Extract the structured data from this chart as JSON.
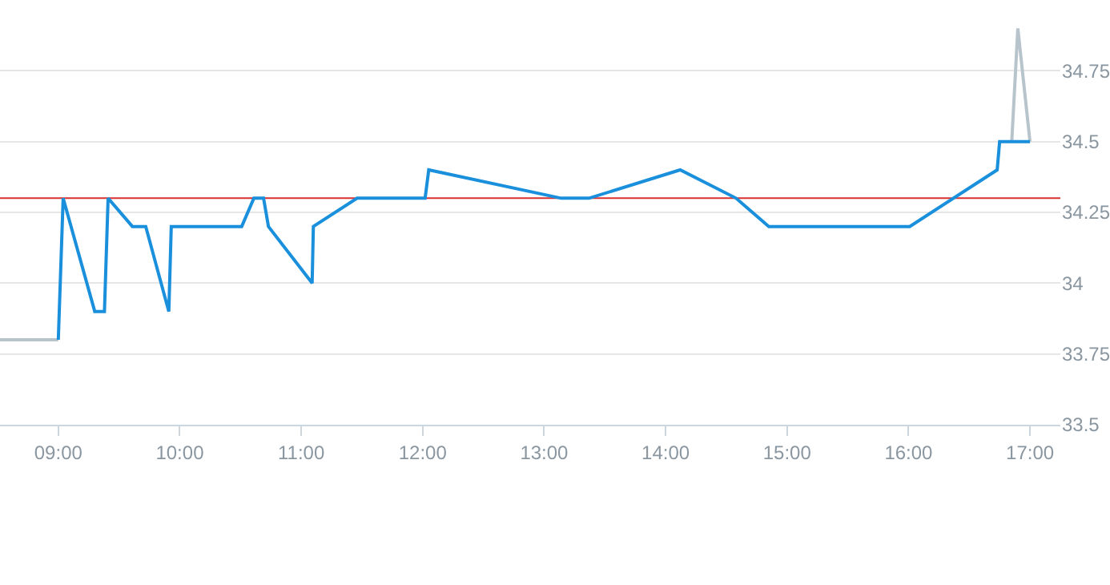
{
  "chart_data": {
    "type": "line",
    "xlim": [
      8.52,
      17.25
    ],
    "xticks": [
      {
        "value": 9,
        "label": "09:00"
      },
      {
        "value": 10,
        "label": "10:00"
      },
      {
        "value": 11,
        "label": "11:00"
      },
      {
        "value": 12,
        "label": "12:00"
      },
      {
        "value": 13,
        "label": "13:00"
      },
      {
        "value": 14,
        "label": "14:00"
      },
      {
        "value": 15,
        "label": "15:00"
      },
      {
        "value": 16,
        "label": "16:00"
      },
      {
        "value": 17,
        "label": "17:00"
      }
    ],
    "ylim": [
      33.5,
      35.0
    ],
    "yticks": [
      33.5,
      33.75,
      34,
      34.25,
      34.5,
      34.75
    ],
    "grid": "y",
    "marker": "none",
    "series": [
      {
        "color": "#b8c4cc",
        "x": [
          8.52,
          9.0
        ],
        "values": [
          33.8,
          33.8
        ]
      },
      {
        "color": "#b8c4cc",
        "x": [
          16.85,
          16.9,
          17.0
        ],
        "values": [
          34.5,
          34.9,
          34.5
        ]
      },
      {
        "color": "#1a90dc",
        "x": [
          9.0,
          9.04,
          9.3,
          9.38,
          9.41,
          9.61,
          9.72,
          9.91,
          9.93,
          10.51,
          10.61,
          10.69,
          10.73,
          11.09,
          11.1,
          11.46,
          12.02,
          12.05,
          13.14,
          13.37,
          14.12,
          14.58,
          14.85,
          16.01,
          16.73,
          16.75,
          17.0
        ],
        "values": [
          33.8,
          34.3,
          33.9,
          33.9,
          34.3,
          34.2,
          34.2,
          33.9,
          34.2,
          34.2,
          34.3,
          34.3,
          34.2,
          34.0,
          34.2,
          34.3,
          34.3,
          34.4,
          34.3,
          34.3,
          34.4,
          34.3,
          34.2,
          34.2,
          34.4,
          34.5,
          34.5
        ]
      }
    ],
    "ref_lines": [
      {
        "axis": "y",
        "value": 34.3,
        "color": "#d9302f"
      }
    ]
  }
}
